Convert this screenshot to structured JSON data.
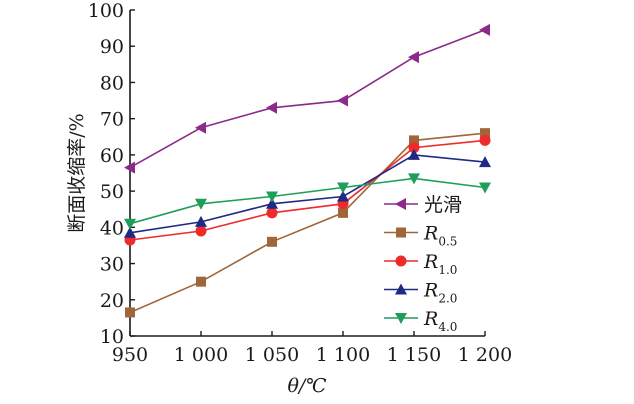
{
  "chart_data": {
    "type": "line",
    "title": "",
    "xlabel": "θ/℃",
    "ylabel": "断面收缩率/%",
    "categories": [
      "950",
      "1 000",
      "1 050",
      "1 100",
      "1 150",
      "1 200"
    ],
    "x": [
      950,
      1000,
      1050,
      1100,
      1150,
      1200
    ],
    "xlim": [
      950,
      1200
    ],
    "ylim": [
      10,
      100
    ],
    "yticks": [
      10,
      20,
      30,
      40,
      50,
      60,
      70,
      80,
      90,
      100
    ],
    "grid": false,
    "legend_position": "center-right",
    "series": [
      {
        "name": "光滑",
        "sub": "",
        "color": "#8b2a8b",
        "marker": "triangle-left",
        "values": [
          56.5,
          67.5,
          73,
          75,
          87,
          94.5
        ]
      },
      {
        "name": "R",
        "sub": "0.5",
        "color": "#a0663a",
        "marker": "square",
        "values": [
          16.5,
          25,
          36,
          44,
          64,
          66
        ]
      },
      {
        "name": "R",
        "sub": "1.0",
        "color": "#ee2a2a",
        "marker": "circle",
        "values": [
          36.5,
          39,
          44,
          46.5,
          62,
          64
        ]
      },
      {
        "name": "R",
        "sub": "2.0",
        "color": "#1f2a86",
        "marker": "triangle-up",
        "values": [
          38.5,
          41.5,
          46.5,
          48.5,
          60,
          58
        ]
      },
      {
        "name": "R",
        "sub": "4.0",
        "color": "#1f9e5a",
        "marker": "triangle-down",
        "values": [
          41,
          46.5,
          48.5,
          51,
          53.5,
          51
        ]
      }
    ]
  }
}
